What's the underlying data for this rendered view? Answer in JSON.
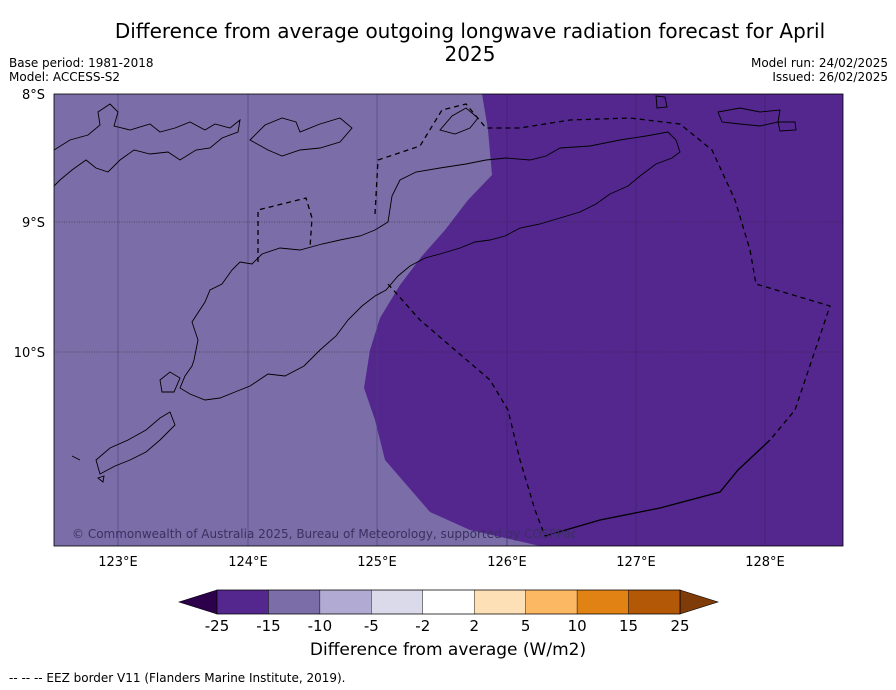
{
  "title": "Difference from average outgoing longwave radiation forecast for April 2025",
  "meta_left": [
    "Base period: 1981-2018",
    "Model: ACCESS-S2"
  ],
  "meta_right": [
    "Model run: 24/02/2025",
    "Issued: 26/02/2025"
  ],
  "map": {
    "lat_labels": [
      "8°S",
      "9°S",
      "10°S"
    ],
    "lon_labels": [
      "123°E",
      "124°E",
      "125°E",
      "126°E",
      "127°E",
      "128°E"
    ],
    "copyright": "© Commonwealth of Australia 2025, Bureau of Meteorology, supported by COSPPac",
    "fill_west_color": "#7b6ea8",
    "fill_east_color": "#54278f"
  },
  "colorbar": {
    "tick_labels": [
      "-25",
      "-15",
      "-10",
      "-5",
      "-2",
      "2",
      "5",
      "10",
      "15",
      "25"
    ],
    "colors": [
      "#54278f",
      "#7b6ea8",
      "#b1aad2",
      "#dadaeb",
      "#ffffff",
      "#fee0b6",
      "#fdb863",
      "#e08214",
      "#b35806"
    ],
    "under_color": "#2d004b",
    "over_color": "#7f3b08",
    "label": "Difference from average (W/m2)"
  },
  "footer": "--  --  -- EEZ border V11 (Flanders Marine Institute, 2019)."
}
